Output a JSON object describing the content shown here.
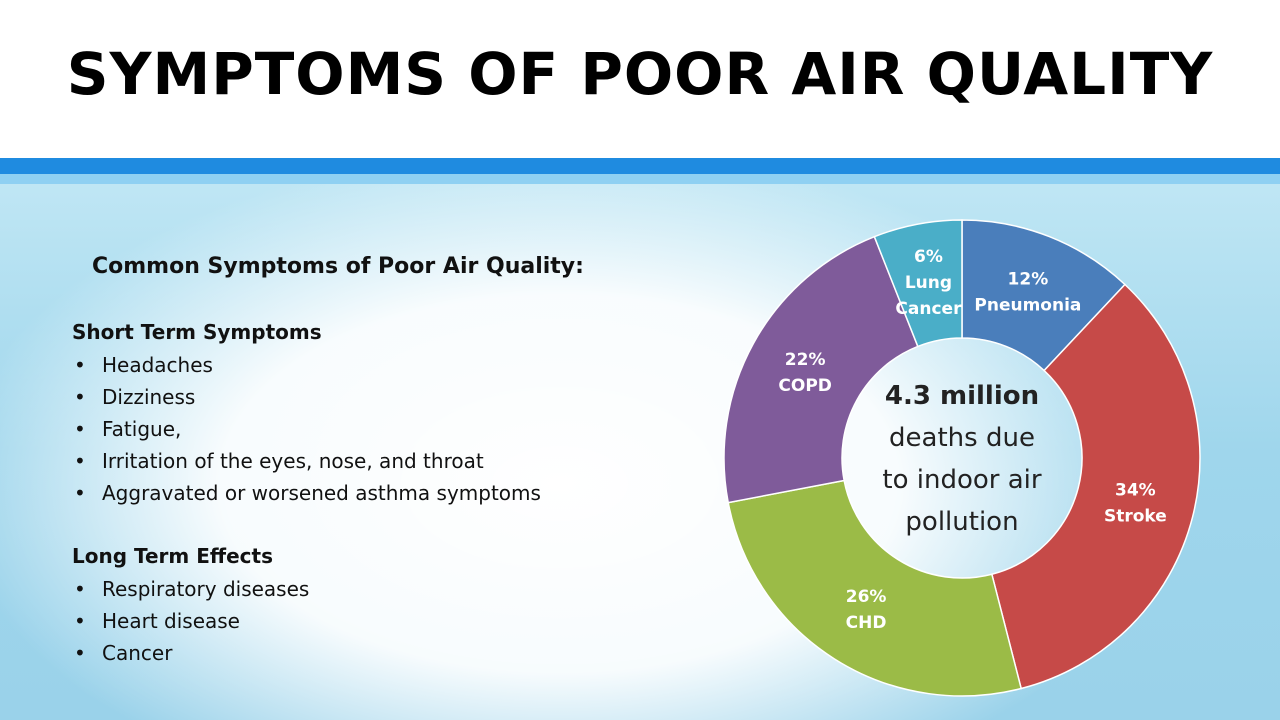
{
  "title": "SYMPTOMS OF POOR AIR QUALITY",
  "subtitle": "Common Symptoms of Poor Air Quality:",
  "short_term": {
    "heading": "Short Term Symptoms",
    "items": [
      "Headaches",
      "Dizziness",
      "Fatigue,",
      "Irritation of the eyes, nose, and throat",
      "Aggravated or worsened asthma symptoms"
    ]
  },
  "long_term": {
    "heading": "Long Term Effects",
    "items": [
      "Respiratory diseases",
      "Heart disease",
      "Cancer"
    ]
  },
  "chart_data": {
    "type": "pie",
    "donut": true,
    "center_text": {
      "bold": "4.3 million",
      "lines": [
        "deaths due",
        "to indoor air",
        "pollution"
      ]
    },
    "slices": [
      {
        "label_lines": [
          "12%",
          "Pneumonia"
        ],
        "value": 12,
        "color": "#4a7ebb"
      },
      {
        "label_lines": [
          "34%",
          "Stroke"
        ],
        "value": 34,
        "color": "#c64a48"
      },
      {
        "label_lines": [
          "26%",
          "CHD"
        ],
        "value": 26,
        "color": "#9bbb47"
      },
      {
        "label_lines": [
          "22%",
          "COPD"
        ],
        "value": 22,
        "color": "#7f5b9a"
      },
      {
        "label_lines": [
          "6%",
          "Lung",
          "Cancer"
        ],
        "value": 6,
        "color": "#4aaec8"
      }
    ]
  }
}
